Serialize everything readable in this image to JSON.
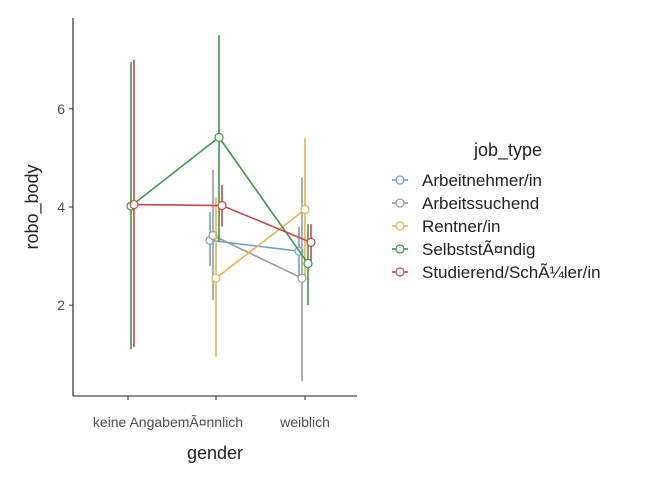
{
  "chart_data": {
    "type": "line",
    "xlabel": "gender",
    "ylabel": "robo_body",
    "categories": [
      "keine Angabe",
      "mÃ¤nnlich",
      "weiblich"
    ],
    "category_tick_labels": [
      "keine AngabemÃ¤nnlich",
      "weiblich"
    ],
    "y_ticks": [
      2,
      4,
      6
    ],
    "ylim": [
      0.15,
      7.85
    ],
    "legend": {
      "title": "job_type",
      "position": "right"
    },
    "error_bars": true,
    "series": [
      {
        "name": "Arbeitnehmer/in",
        "color": "#6f9fdc",
        "points": [
          {
            "x": "mÃ¤nnlich",
            "y": 3.32,
            "low": 2.8,
            "high": 3.9
          },
          {
            "x": "weiblich",
            "y": 3.1,
            "low": 2.5,
            "high": 3.6
          }
        ]
      },
      {
        "name": "Arbeitssuchend",
        "color": "#9a9a9a",
        "points": [
          {
            "x": "mÃ¤nnlich",
            "y": 3.42,
            "low": 2.1,
            "high": 4.75
          },
          {
            "x": "weiblich",
            "y": 2.55,
            "low": 0.45,
            "high": 4.6
          }
        ]
      },
      {
        "name": "Rentner/in",
        "color": "#e8b24f",
        "points": [
          {
            "x": "mÃ¤nnlich",
            "y": 2.55,
            "low": 0.95,
            "high": 4.2
          },
          {
            "x": "weiblich",
            "y": 3.95,
            "low": 2.6,
            "high": 5.4
          }
        ]
      },
      {
        "name": "SelbststÃ¤ndig",
        "color": "#3b9a47",
        "points": [
          {
            "x": "keine Angabe",
            "y": 4.02,
            "low": 1.1,
            "high": 6.95
          },
          {
            "x": "mÃ¤nnlich",
            "y": 5.42,
            "low": 3.3,
            "high": 7.5
          },
          {
            "x": "weiblich",
            "y": 2.85,
            "low": 2.0,
            "high": 3.65
          }
        ]
      },
      {
        "name": "Studierend/SchÃ¼ler/in",
        "color": "#c8474b",
        "points": [
          {
            "x": "keine Angabe",
            "y": 4.05,
            "low": 1.15,
            "high": 7.0
          },
          {
            "x": "mÃ¤nnlich",
            "y": 4.03,
            "low": 3.6,
            "high": 4.45
          },
          {
            "x": "weiblich",
            "y": 3.28,
            "low": 2.9,
            "high": 3.65
          }
        ]
      }
    ]
  }
}
